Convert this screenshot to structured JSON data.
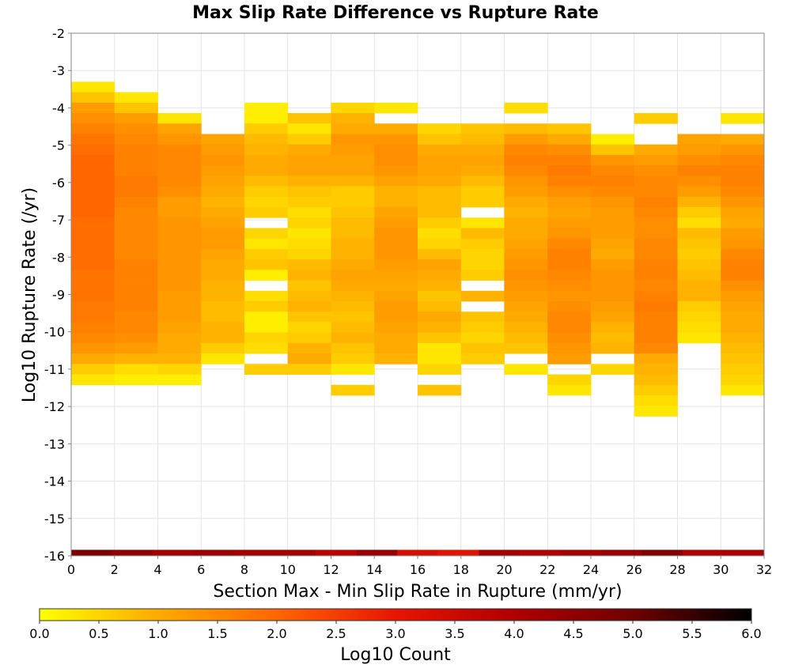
{
  "chart_data": {
    "type": "heatmap",
    "title": "Max Slip Rate Difference vs Rupture Rate",
    "xlabel": "Section Max - Min Slip Rate in Rupture (mm/yr)",
    "ylabel": "Log10 Rupture Rate (/yr)",
    "xlim": [
      0,
      32
    ],
    "ylim": [
      -16,
      -2
    ],
    "x_ticks": [
      "0",
      "2",
      "4",
      "6",
      "8",
      "10",
      "12",
      "14",
      "16",
      "18",
      "20",
      "22",
      "24",
      "26",
      "28",
      "30",
      "32"
    ],
    "y_ticks": [
      "-2",
      "-3",
      "-4",
      "-5",
      "-6",
      "-7",
      "-8",
      "-9",
      "-10",
      "-11",
      "-12",
      "-13",
      "-14",
      "-15",
      "-16"
    ],
    "x_bin_width": 2,
    "y_bin_height": 0.28,
    "grid": true,
    "colorbar": {
      "label": "Log10 Count",
      "range": [
        0,
        6
      ],
      "ticks": [
        "0.0",
        "0.5",
        "1.0",
        "1.5",
        "2.0",
        "2.5",
        "3.0",
        "3.5",
        "4.0",
        "4.5",
        "5.0",
        "5.5",
        "6.0"
      ],
      "colors": [
        "#ffff00",
        "#ffaa00",
        "#ff6600",
        "#e81500",
        "#b00000",
        "#700000",
        "#000000"
      ]
    },
    "marginal_row": {
      "y_range": [
        -16,
        -15.84
      ],
      "values": [
        4.8,
        4.5,
        4.2,
        4.3,
        4.2,
        4.2,
        3.8,
        4.4,
        3.3,
        3.1,
        4.2,
        4.0,
        4.2,
        4.4,
        4.7,
        4.0,
        4.1
      ]
    },
    "columns": [
      {
        "x": 0,
        "y_max": -3.3,
        "values": [
          0.3,
          0.7,
          1.2,
          1.4,
          1.6,
          1.8,
          1.9,
          2.0,
          2.0,
          2.0,
          2.0,
          2.0,
          2.0,
          1.9,
          1.9,
          1.9,
          1.9,
          1.9,
          1.8,
          1.8,
          1.8,
          1.7,
          1.7,
          1.6,
          1.5,
          1.3,
          1.0,
          0.6,
          0.3
        ]
      },
      {
        "x": 2,
        "y_max": -3.58,
        "values": [
          0.3,
          0.7,
          1.2,
          1.4,
          1.5,
          1.6,
          1.6,
          1.6,
          1.7,
          1.7,
          1.6,
          1.5,
          1.5,
          1.5,
          1.5,
          1.5,
          1.6,
          1.6,
          1.6,
          1.6,
          1.6,
          1.5,
          1.5,
          1.4,
          1.2,
          0.9,
          0.4,
          0.2
        ]
      },
      {
        "x": 4,
        "y_max": -4.14,
        "values": [
          0.3,
          1.1,
          1.3,
          1.5,
          1.5,
          1.5,
          1.5,
          1.4,
          1.2,
          1.2,
          1.3,
          1.3,
          1.3,
          1.3,
          1.3,
          1.3,
          1.3,
          1.2,
          1.2,
          1.2,
          1.1,
          1.0,
          1.0,
          0.9,
          0.5,
          0.2
        ]
      },
      {
        "x": 6,
        "y_max": -4.7,
        "values": [
          1.1,
          1.2,
          1.3,
          1.2,
          1.1,
          1.0,
          0.9,
          1.0,
          1.1,
          1.2,
          1.2,
          1.1,
          1.0,
          1.0,
          0.9,
          0.9,
          0.8,
          0.8,
          0.9,
          0.9,
          0.6,
          0.3
        ]
      },
      {
        "x": 8,
        "y_max": -3.86,
        "values": [
          0.2,
          0.2,
          0.6,
          0.8,
          0.9,
          1.0,
          1.0,
          0.8,
          0.6,
          0.5,
          0.6,
          null,
          0.5,
          0.3,
          0.6,
          0.7,
          0.2,
          null,
          0.4,
          0.6,
          0.2,
          0.2,
          0.5,
          0.4,
          null,
          0.6
        ]
      },
      {
        "x": 10,
        "y_max": -4.14,
        "values": [
          0.7,
          0.3,
          0.6,
          1.0,
          1.1,
          1.1,
          0.9,
          0.7,
          0.6,
          0.4,
          0.5,
          0.3,
          0.4,
          0.5,
          0.8,
          0.9,
          0.7,
          0.8,
          0.9,
          0.7,
          0.5,
          0.6,
          0.9,
          1.0,
          0.6
        ]
      },
      {
        "x": 12,
        "y_max": -3.86,
        "values": [
          0.5,
          0.9,
          1.0,
          1.3,
          1.2,
          1.1,
          1.1,
          0.9,
          0.6,
          0.6,
          0.7,
          0.8,
          0.8,
          0.9,
          0.9,
          1.0,
          1.1,
          1.0,
          0.9,
          0.8,
          0.7,
          0.8,
          0.9,
          0.7,
          0.6,
          0.3,
          null,
          0.6
        ]
      },
      {
        "x": 14,
        "y_max": -3.86,
        "values": [
          0.3,
          null,
          1.0,
          1.3,
          1.4,
          1.4,
          1.3,
          1.1,
          0.9,
          0.9,
          1.1,
          1.2,
          1.3,
          1.3,
          1.3,
          1.2,
          1.1,
          1.0,
          1.1,
          1.2,
          1.2,
          1.1,
          1.0,
          1.0,
          0.9
        ]
      },
      {
        "x": 16,
        "y_max": -4.42,
        "values": [
          0.5,
          0.7,
          1.0,
          1.1,
          1.1,
          1.0,
          0.8,
          0.8,
          0.8,
          0.6,
          0.4,
          0.5,
          0.8,
          1.1,
          1.0,
          0.9,
          0.7,
          0.8,
          1.0,
          0.9,
          0.7,
          0.3,
          0.3,
          0.5,
          null,
          0.7
        ]
      },
      {
        "x": 18,
        "y_max": -4.42,
        "values": [
          0.7,
          0.8,
          1.0,
          1.1,
          1.0,
          0.8,
          0.6,
          0.6,
          null,
          0.3,
          0.8,
          0.6,
          0.5,
          0.5,
          0.6,
          null,
          0.9,
          null,
          0.7,
          0.6,
          0.5,
          0.7,
          0.6
        ]
      },
      {
        "x": 20,
        "y_max": -3.86,
        "values": [
          0.4,
          null,
          0.8,
          1.2,
          1.5,
          1.6,
          1.5,
          1.3,
          1.2,
          1.0,
          0.9,
          1.0,
          1.0,
          1.1,
          1.2,
          1.3,
          1.4,
          1.3,
          1.2,
          1.1,
          1.0,
          0.9,
          0.8,
          0.7,
          null,
          0.3
        ]
      },
      {
        "x": 22,
        "y_max": -4.42,
        "values": [
          0.7,
          1.0,
          1.4,
          1.6,
          1.7,
          1.6,
          1.4,
          1.2,
          1.1,
          1.2,
          1.3,
          1.5,
          1.6,
          1.6,
          1.5,
          1.4,
          1.3,
          1.4,
          1.5,
          1.5,
          1.4,
          1.3,
          1.2,
          null,
          0.5,
          0.3
        ]
      },
      {
        "x": 24,
        "y_max": -4.7,
        "values": [
          0.2,
          0.7,
          1.3,
          1.5,
          1.6,
          1.5,
          1.3,
          1.2,
          1.2,
          1.2,
          1.1,
          1.0,
          1.2,
          1.3,
          1.3,
          1.3,
          1.2,
          1.1,
          0.9,
          0.8,
          0.9,
          null,
          0.5
        ]
      },
      {
        "x": 26,
        "y_max": -4.14,
        "values": [
          0.6,
          null,
          null,
          1.0,
          1.2,
          1.4,
          1.5,
          1.5,
          1.6,
          1.5,
          1.4,
          1.4,
          1.5,
          1.5,
          1.6,
          1.6,
          1.5,
          1.6,
          1.7,
          1.6,
          1.6,
          1.6,
          1.5,
          1.0,
          0.9,
          0.8,
          0.6,
          0.4,
          0.3
        ]
      },
      {
        "x": 28,
        "y_max": -4.7,
        "values": [
          1.1,
          1.2,
          1.4,
          1.6,
          1.4,
          1.2,
          0.9,
          0.6,
          0.4,
          0.8,
          0.7,
          0.6,
          0.7,
          0.8,
          0.9,
          0.9,
          0.6,
          0.5,
          0.4,
          0.3
        ]
      },
      {
        "x": 30,
        "y_max": -4.14,
        "values": [
          0.3,
          null,
          1.0,
          1.3,
          1.5,
          1.6,
          1.6,
          1.5,
          1.3,
          1.1,
          1.0,
          1.2,
          1.3,
          1.5,
          1.6,
          1.6,
          1.4,
          1.2,
          1.1,
          1.0,
          1.0,
          0.9,
          0.8,
          0.7,
          0.6,
          0.5,
          0.3
        ]
      }
    ]
  }
}
